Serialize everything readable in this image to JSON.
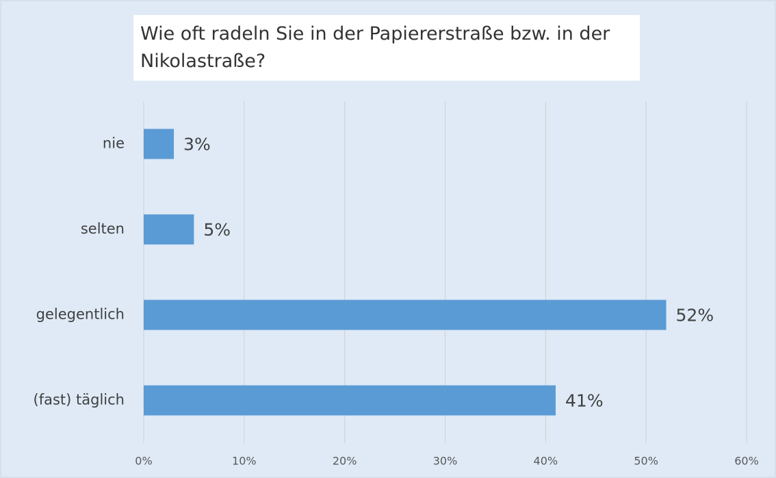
{
  "chart_data": {
    "type": "barh",
    "title": "Wie oft radeln Sie in der Papiererstraße bzw. in der Nikolastraße?",
    "categories": [
      "nie",
      "selten",
      "gelegentlich",
      "(fast) täglich"
    ],
    "values": [
      3,
      5,
      52,
      41
    ],
    "value_labels": [
      "3%",
      "5%",
      "52%",
      "41%"
    ],
    "color": "#5b9bd5",
    "xlim": [
      0,
      60
    ],
    "xticks": [
      {
        "value": 0,
        "label": "0%"
      },
      {
        "value": 10,
        "label": "10%"
      },
      {
        "value": 20,
        "label": "20%"
      },
      {
        "value": 30,
        "label": "30%"
      },
      {
        "value": 40,
        "label": "40%"
      },
      {
        "value": 50,
        "label": "50%"
      },
      {
        "value": 60,
        "label": "60%"
      }
    ],
    "grid": true
  }
}
